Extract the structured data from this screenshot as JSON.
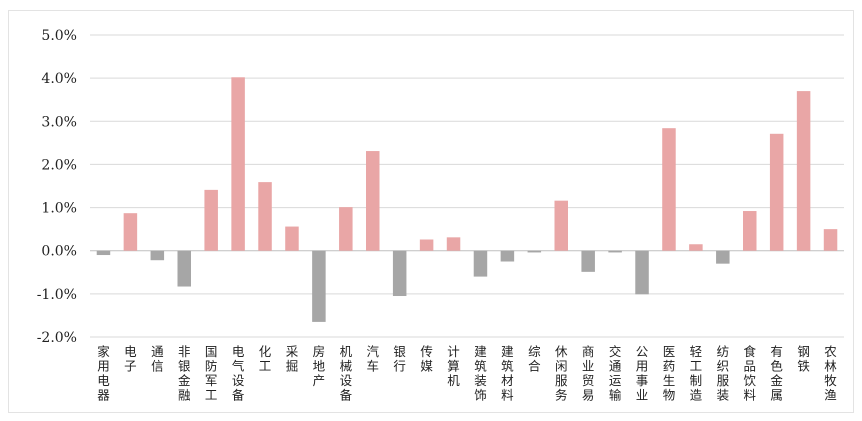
{
  "chart_data": {
    "type": "bar",
    "title": "",
    "xlabel": "",
    "ylabel": "",
    "ylim": [
      -0.02,
      0.05
    ],
    "yticks": [
      -0.02,
      -0.01,
      0.0,
      0.01,
      0.02,
      0.03,
      0.04,
      0.05
    ],
    "ytick_labels": [
      "-2.0%",
      "-1.0%",
      "0.0%",
      "1.0%",
      "2.0%",
      "3.0%",
      "4.0%",
      "5.0%"
    ],
    "grid": true,
    "legend": "none",
    "colors": {
      "positive": "#e9a6a6",
      "negative": "#a6a6a6",
      "grid": "#d9d9d9",
      "axis": "#bfbfbf"
    },
    "categories": [
      "家用电器",
      "电子",
      "通信",
      "非银金融",
      "国防军工",
      "电气设备",
      "化工",
      "采掘",
      "房地产",
      "机械设备",
      "汽车",
      "银行",
      "传媒",
      "计算机",
      "建筑装饰",
      "建筑材料",
      "综合",
      "休闲服务",
      "商业贸易",
      "交通运输",
      "公用事业",
      "医药生物",
      "轻工制造",
      "纺织服装",
      "食品饮料",
      "有色金属",
      "钢铁",
      "农林牧渔"
    ],
    "values": [
      -0.001,
      0.0087,
      -0.0022,
      -0.0083,
      0.0141,
      0.0402,
      0.0159,
      0.0056,
      -0.0165,
      0.0101,
      0.0231,
      -0.0105,
      0.0026,
      0.0031,
      -0.006,
      -0.0025,
      -0.0004,
      0.0116,
      -0.0049,
      -0.0004,
      -0.0101,
      0.0284,
      0.0015,
      -0.003,
      0.0092,
      0.0271,
      0.037,
      0.005
    ]
  }
}
